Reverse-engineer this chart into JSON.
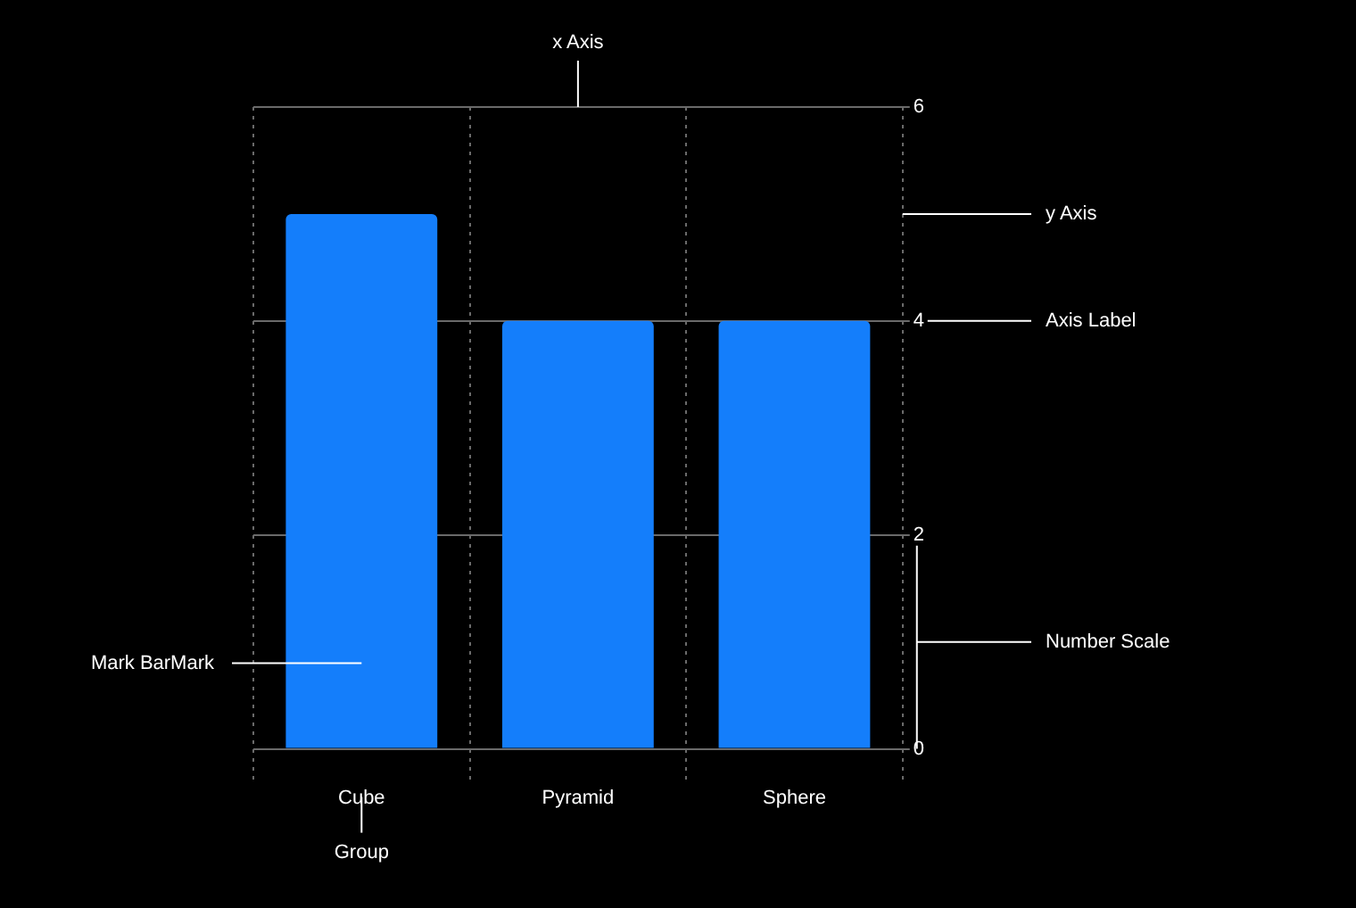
{
  "chart_data": {
    "type": "bar",
    "categories": [
      "Cube",
      "Pyramid",
      "Sphere"
    ],
    "values": [
      5,
      4,
      4
    ],
    "color": "#147efb",
    "ylim": [
      0,
      6
    ],
    "yticks": [
      0,
      2,
      4,
      6
    ],
    "grid": true,
    "annotations": [
      "x Axis",
      "y Axis",
      "Axis Label",
      "Number Scale",
      "Mark BarMark",
      "Group"
    ]
  }
}
